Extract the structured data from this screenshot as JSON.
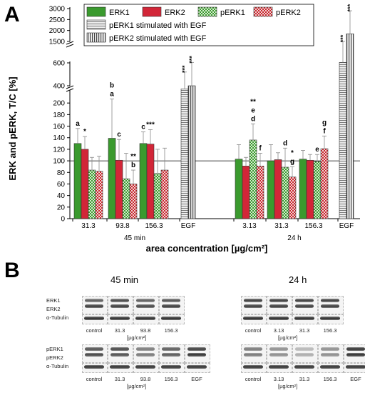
{
  "panel_a_letter": "A",
  "panel_b_letter": "B",
  "chart_data": {
    "type": "bar",
    "ylabel": "ERK and pERK, T/C [%]",
    "xlabel": "area concentration [µg/cm²]",
    "reference_line": 100,
    "axis_segments": [
      {
        "range": [
          0,
          220
        ],
        "ticks": [
          0,
          20,
          40,
          60,
          80,
          100,
          120,
          140,
          160,
          180,
          200
        ]
      },
      {
        "range": [
          400,
          600
        ],
        "ticks": [
          400,
          600
        ]
      },
      {
        "range": [
          1500,
          3000
        ],
        "ticks": [
          1500,
          2000,
          2500,
          3000
        ]
      }
    ],
    "groups": [
      {
        "label": "45 min",
        "categories": [
          "31.3",
          "93.8",
          "156.3",
          "EGF"
        ]
      },
      {
        "label": "24 h",
        "categories": [
          "3.13",
          "31.3",
          "156.3",
          "EGF"
        ]
      }
    ],
    "series": [
      {
        "name": "ERK1",
        "color": "#3a9a2e",
        "pattern": "solid",
        "values": [
          130,
          139,
          130,
          null,
          103,
          100,
          103,
          null
        ],
        "errors": [
          26,
          68,
          20,
          null,
          25,
          28,
          15,
          null
        ]
      },
      {
        "name": "ERK2",
        "color": "#d22638",
        "pattern": "solid",
        "values": [
          120,
          101,
          129,
          null,
          91,
          102,
          101,
          null
        ],
        "errors": [
          22,
          36,
          25,
          null,
          15,
          12,
          10,
          null
        ]
      },
      {
        "name": "pERK1",
        "color": "#4fb13a",
        "pattern": "check",
        "values": [
          84,
          69,
          78,
          null,
          136,
          89,
          99,
          null
        ],
        "errors": [
          22,
          44,
          42,
          null,
          28,
          33,
          12,
          null
        ]
      },
      {
        "name": "pERK2",
        "color": "#c8262e",
        "pattern": "check",
        "values": [
          82,
          60,
          84,
          null,
          91,
          72,
          121,
          null
        ],
        "errors": [
          26,
          24,
          38,
          null,
          22,
          18,
          22,
          null
        ]
      },
      {
        "name": "pERK1 stimulated with EGF",
        "color": "#777777",
        "pattern": "hstripe",
        "values": [
          null,
          null,
          null,
          330,
          null,
          null,
          null,
          1200
        ],
        "errors": [
          null,
          null,
          null,
          190,
          null,
          null,
          null,
          300
        ]
      },
      {
        "name": "pERK2 stimulated with EGF",
        "color": "#555555",
        "pattern": "vstripe",
        "values": [
          null,
          null,
          null,
          400,
          null,
          null,
          null,
          1850
        ],
        "errors": [
          null,
          null,
          null,
          220,
          null,
          null,
          null,
          1050
        ]
      }
    ],
    "annotations": [
      {
        "group": 0,
        "cat": 0,
        "series": 0,
        "text": "a"
      },
      {
        "group": 0,
        "cat": 0,
        "series": 1,
        "text": "*"
      },
      {
        "group": 0,
        "cat": 1,
        "series": 0,
        "text": "a"
      },
      {
        "group": 0,
        "cat": 1,
        "series": 0,
        "text": "b"
      },
      {
        "group": 0,
        "cat": 1,
        "series": 1,
        "text": "c"
      },
      {
        "group": 0,
        "cat": 1,
        "series": 3,
        "text": "b"
      },
      {
        "group": 0,
        "cat": 1,
        "series": 3,
        "text": "**"
      },
      {
        "group": 0,
        "cat": 2,
        "series": 0,
        "text": "c"
      },
      {
        "group": 0,
        "cat": 2,
        "series": 1,
        "text": "***"
      },
      {
        "group": 0,
        "cat": 3,
        "series": 4,
        "text": "***"
      },
      {
        "group": 0,
        "cat": 3,
        "series": 5,
        "text": "***"
      },
      {
        "group": 1,
        "cat": 0,
        "series": 2,
        "text": "d"
      },
      {
        "group": 1,
        "cat": 0,
        "series": 2,
        "text": "e"
      },
      {
        "group": 1,
        "cat": 0,
        "series": 2,
        "text": "**"
      },
      {
        "group": 1,
        "cat": 0,
        "series": 3,
        "text": "f"
      },
      {
        "group": 1,
        "cat": 1,
        "series": 2,
        "text": "d"
      },
      {
        "group": 1,
        "cat": 1,
        "series": 3,
        "text": "g"
      },
      {
        "group": 1,
        "cat": 1,
        "series": 3,
        "text": "*"
      },
      {
        "group": 1,
        "cat": 2,
        "series": 2,
        "text": "e"
      },
      {
        "group": 1,
        "cat": 2,
        "series": 3,
        "text": "f"
      },
      {
        "group": 1,
        "cat": 2,
        "series": 3,
        "text": "g"
      },
      {
        "group": 1,
        "cat": 3,
        "series": 4,
        "text": "***"
      },
      {
        "group": 1,
        "cat": 3,
        "series": 5,
        "text": "***"
      }
    ]
  },
  "blots": {
    "left_title": "45 min",
    "right_title": "24 h",
    "row_labels_top": [
      "ERK1",
      "ERK2",
      "α-Tubulin"
    ],
    "row_labels_bottom": [
      "pERK1",
      "pERK2",
      "α-Tubulin"
    ],
    "left_top_lanes": [
      "control",
      "31.3",
      "93.8",
      "156.3"
    ],
    "left_bottom_lanes": [
      "control",
      "31.3",
      "93.8",
      "156.3",
      "EGF"
    ],
    "right_top_lanes": [
      "control",
      "3.13",
      "31.3",
      "156.3"
    ],
    "right_bottom_lanes": [
      "control",
      "3.13",
      "31.3",
      "156.3",
      "EGF"
    ],
    "unit": "[µg/cm²]"
  }
}
